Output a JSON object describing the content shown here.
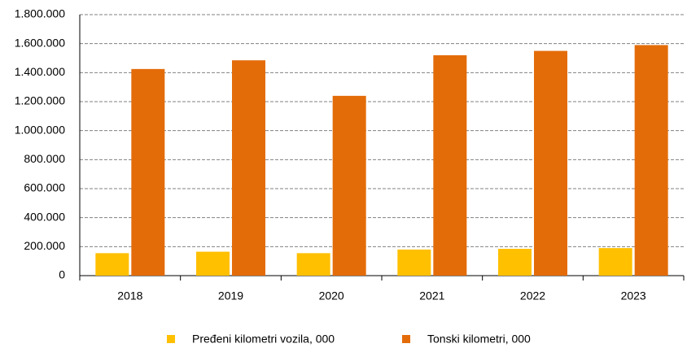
{
  "chart_data": {
    "type": "bar",
    "categories": [
      "2018",
      "2019",
      "2020",
      "2021",
      "2022",
      "2023"
    ],
    "series": [
      {
        "name": "Pređeni kilometri vozila, 000",
        "color": "#FFC000",
        "values": [
          155000,
          165000,
          155000,
          180000,
          185000,
          190000
        ]
      },
      {
        "name": "Tonski kilometri, 000",
        "color": "#E36C09",
        "values": [
          1425000,
          1485000,
          1240000,
          1520000,
          1550000,
          1590000
        ]
      }
    ],
    "ylim": [
      0,
      1800000
    ],
    "yticks": [
      0,
      {
        "value": 200000,
        "label": "200.000"
      },
      {
        "value": 400000,
        "label": "400.000"
      },
      {
        "value": 600000,
        "label": "600.000"
      },
      {
        "value": 800000,
        "label": "800.000"
      },
      {
        "value": 1000000,
        "label": "1.000.000"
      },
      {
        "value": 1200000,
        "label": "1.200.000"
      },
      {
        "value": 1400000,
        "label": "1.400.000"
      },
      {
        "value": 1600000,
        "label": "1.600.000"
      },
      {
        "value": 1800000,
        "label": "1.800.000"
      }
    ],
    "grid": true,
    "legend": "bottom"
  }
}
